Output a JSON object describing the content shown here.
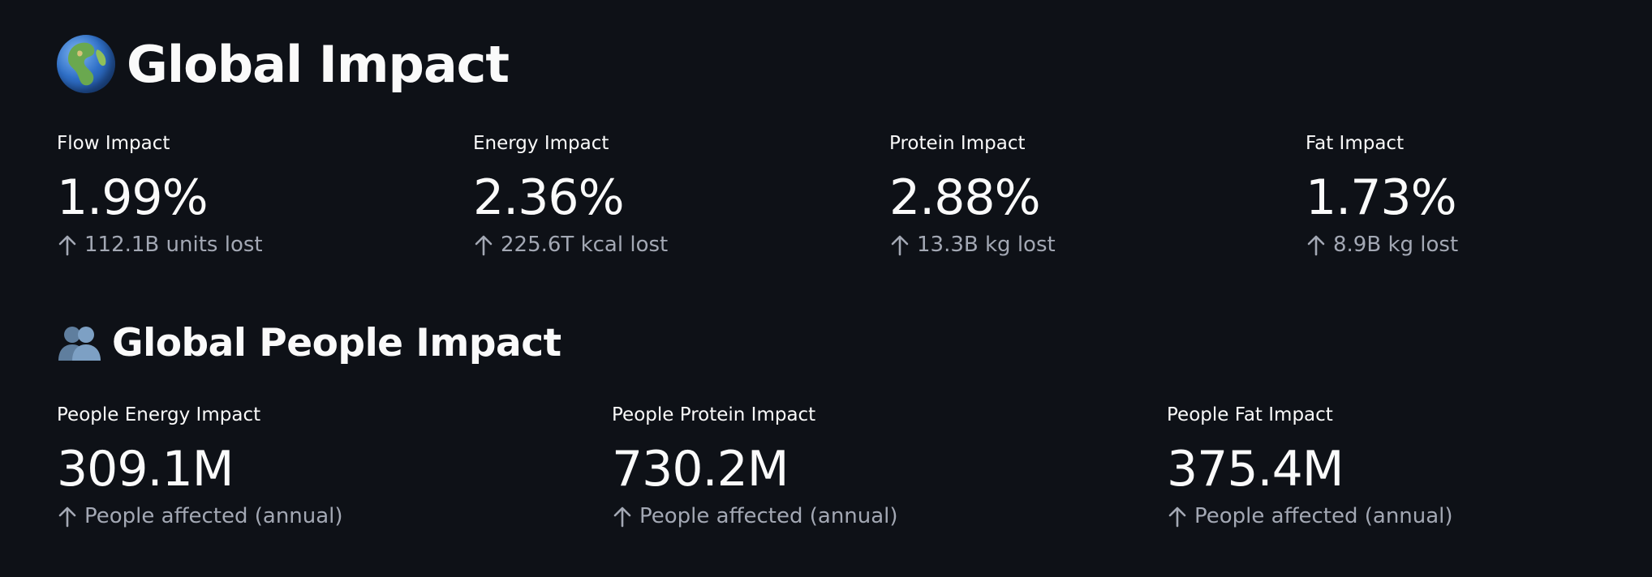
{
  "global_impact": {
    "emoji": "🌍",
    "title": "Global Impact",
    "metrics": [
      {
        "label": "Flow Impact",
        "value": "1.99%",
        "delta": "112.1B units lost",
        "delta_icon": "arrow-up-icon"
      },
      {
        "label": "Energy Impact",
        "value": "2.36%",
        "delta": "225.6T kcal lost",
        "delta_icon": "arrow-up-icon"
      },
      {
        "label": "Protein Impact",
        "value": "2.88%",
        "delta": "13.3B kg lost",
        "delta_icon": "arrow-up-icon"
      },
      {
        "label": "Fat Impact",
        "value": "1.73%",
        "delta": "8.9B kg lost",
        "delta_icon": "arrow-up-icon"
      }
    ]
  },
  "people_impact": {
    "emoji": "👥",
    "title": "Global People Impact",
    "metrics": [
      {
        "label": "People Energy Impact",
        "value": "309.1M",
        "delta": "People affected (annual)",
        "delta_icon": "arrow-up-icon"
      },
      {
        "label": "People Protein Impact",
        "value": "730.2M",
        "delta": "People affected (annual)",
        "delta_icon": "arrow-up-icon"
      },
      {
        "label": "People Fat Impact",
        "value": "375.4M",
        "delta": "People affected (annual)",
        "delta_icon": "arrow-up-icon"
      }
    ]
  },
  "colors": {
    "background": "#0e1117",
    "text": "#fafafa",
    "delta_text": "#a3a8b4"
  }
}
